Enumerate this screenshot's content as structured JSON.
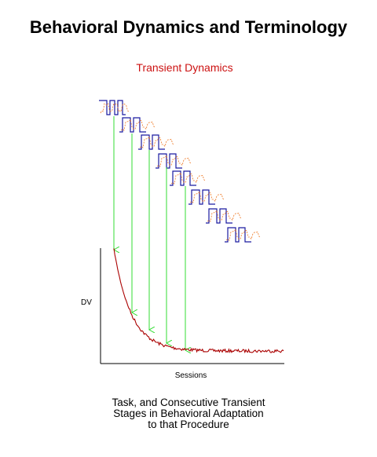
{
  "title": "Behavioral Dynamics and Terminology",
  "subtitle": "Transient Dynamics",
  "y_axis_label": "DV",
  "x_axis_label": "Sessions",
  "caption": [
    "Task, and Consecutive Transient",
    "Stages in Behavioral Adaptation",
    "to that Procedure"
  ],
  "colors": {
    "title": "#000000",
    "subtitle": "#cc1111",
    "curve": "#aa0000",
    "arrows": "#33dd33",
    "schedule": "#1a1aa0",
    "response_trace": "#ee7722",
    "axes": "#000000"
  },
  "stage_count": 8,
  "arrow_count": 5
}
